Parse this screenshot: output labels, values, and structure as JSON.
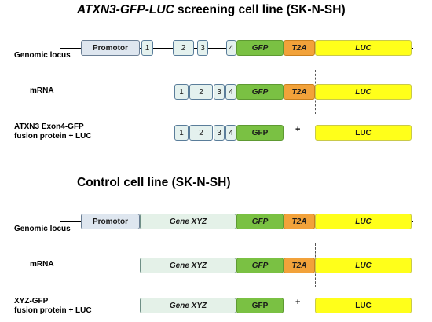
{
  "section1": {
    "title_italic": "ATXN3-GFP-LUC",
    "title_rest": " screening cell line (SK-N-SH)",
    "genomic_label": "Genomic locus",
    "mrna_label": "mRNA",
    "protein_label_1": "ATXN3 Exon4-GFP",
    "protein_label_2": "fusion protein + LUC",
    "promotor": "Promotor",
    "exons": [
      "1",
      "2",
      "3",
      "4"
    ],
    "gfp": "GFP",
    "t2a": "T2A",
    "luc": "LUC",
    "plus": "+"
  },
  "section2": {
    "title": "Control cell line (SK-N-SH)",
    "genomic_label": "Genomic locus",
    "mrna_label": "mRNA",
    "protein_label_1": "XYZ-GFP",
    "protein_label_2": "fusion protein + LUC",
    "promotor": "Promotor",
    "gene": "Gene XYZ",
    "gfp": "GFP",
    "t2a": "T2A",
    "luc": "LUC",
    "plus": "+"
  },
  "colors": {
    "gfp": "#7ac143",
    "t2a": "#f2a23a",
    "luc": "#ffff1a",
    "exon": "#e4f1ee",
    "promotor": "#dee6ef"
  }
}
